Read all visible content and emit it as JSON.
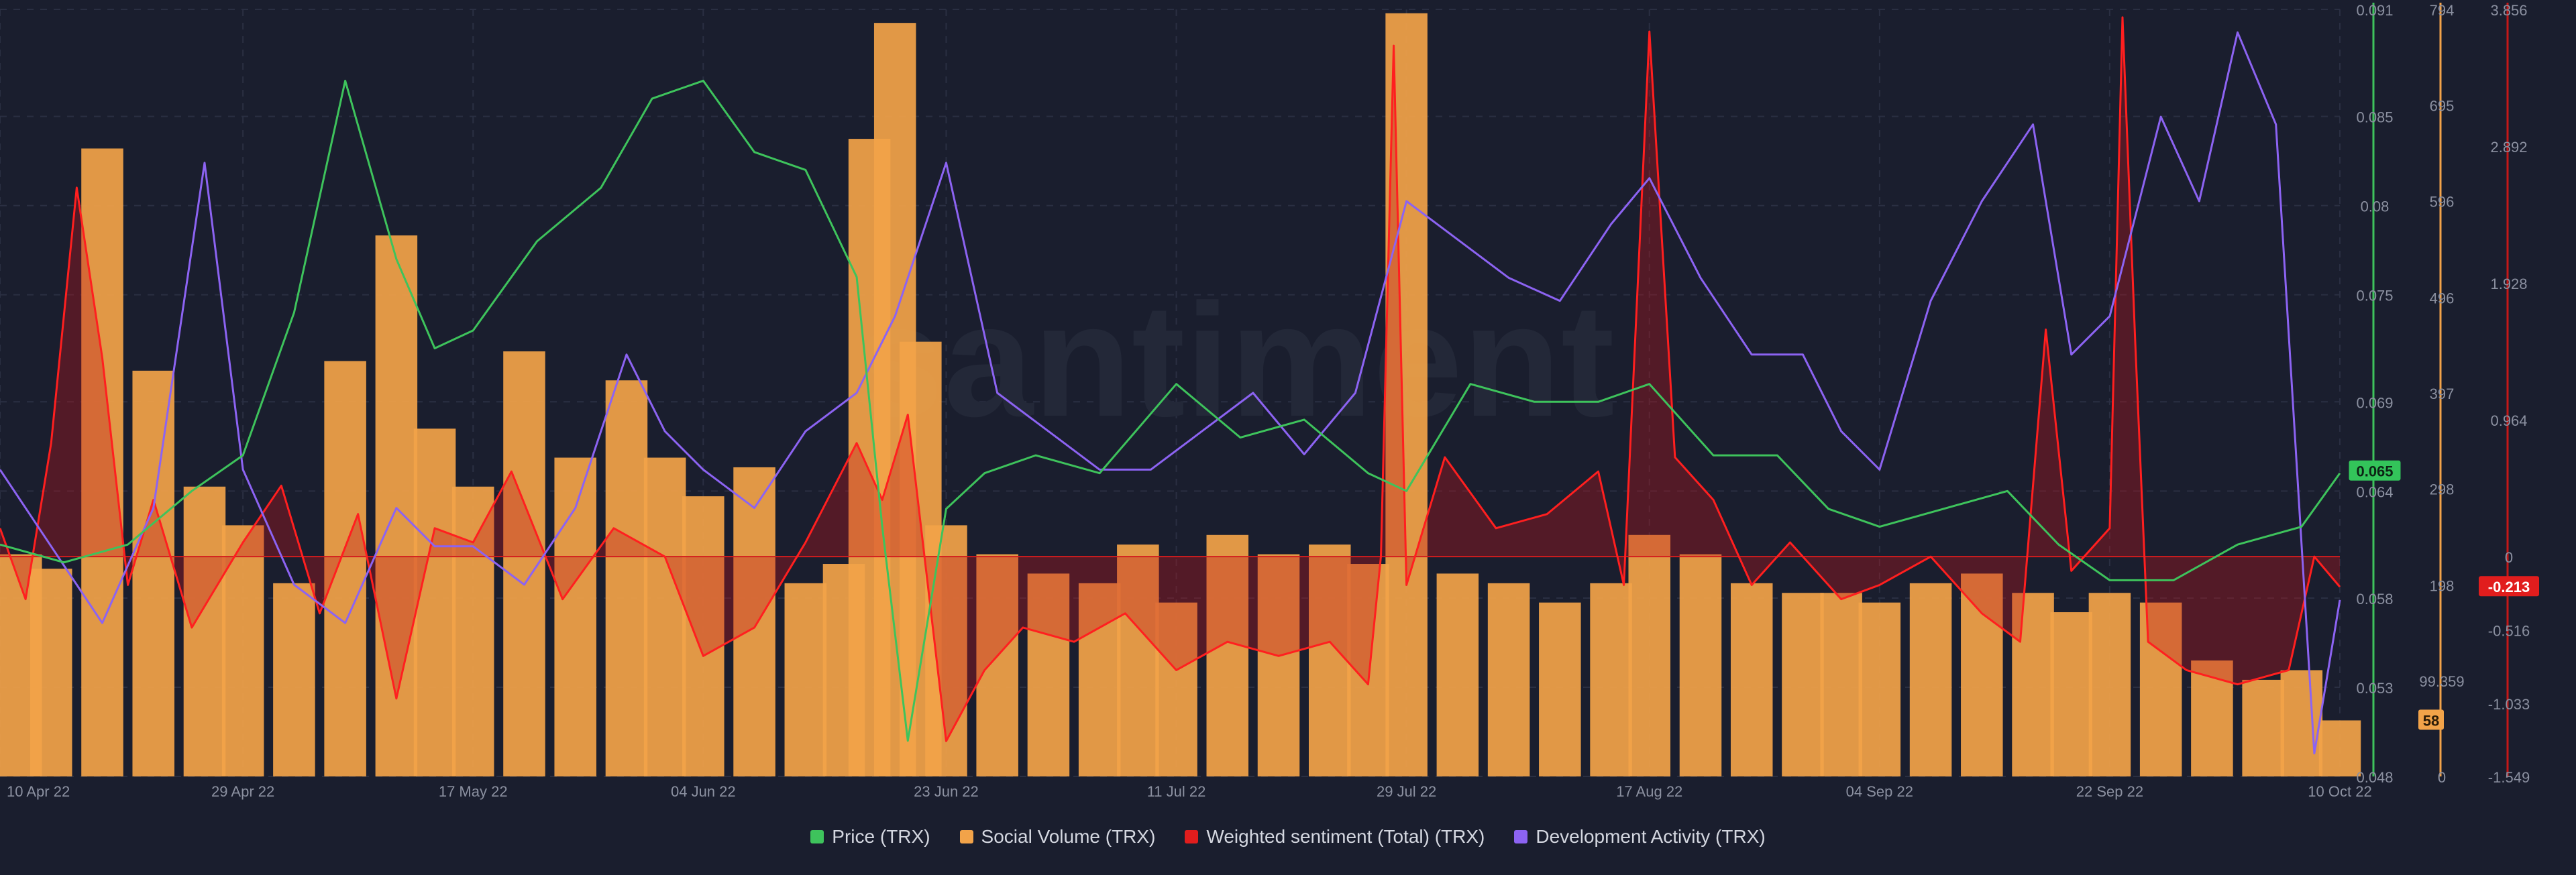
{
  "watermark": "santiment",
  "colors": {
    "background": "#1a1e2e",
    "price": "#3ec35c",
    "social": "#f2a349",
    "sentiment": "#ff1f1f",
    "dev": "#8c63f2",
    "grid": "#2a2f42",
    "axis_text": "#8b90a0"
  },
  "chart_data": {
    "type": "line",
    "grid": true,
    "legend_position": "bottom-center",
    "x_ticks": [
      "10 Apr 22",
      "29 Apr 22",
      "17 May 22",
      "04 Jun 22",
      "23 Jun 22",
      "11 Jul 22",
      "29 Jul 22",
      "17 Aug 22",
      "04 Sep 22",
      "22 Sep 22",
      "10 Oct 22"
    ],
    "x_range": [
      "10 Apr 22",
      "10 Oct 22"
    ],
    "axes": {
      "price": {
        "min": 0.048,
        "max": 0.091,
        "ticks": [
          "0.091",
          "0.085",
          "0.08",
          "0.075",
          "0.069",
          "0.064",
          "0.058",
          "0.053",
          "0.048"
        ]
      },
      "social": {
        "min": 0,
        "max": 794,
        "ticks": [
          "794",
          "695",
          "596",
          "496",
          "397",
          "298",
          "198",
          "99.359",
          "0"
        ]
      },
      "sentiment": {
        "min": -1.549,
        "max": 3.856,
        "ticks": [
          "3.856",
          "2.892",
          "1.928",
          "0.964",
          "0",
          "-0.516",
          "-1.033",
          "-1.549"
        ]
      }
    },
    "current_values": {
      "price": "0.065",
      "social": "58",
      "sentiment": "-0.213"
    },
    "series": [
      {
        "name": "Price (TRX)",
        "axis": "price",
        "style": "line",
        "x": [
          "10 Apr 22",
          "15 Apr 22",
          "20 Apr 22",
          "25 Apr 22",
          "29 Apr 22",
          "03 May 22",
          "07 May 22",
          "11 May 22",
          "14 May 22",
          "17 May 22",
          "22 May 22",
          "27 May 22",
          "31 May 22",
          "04 Jun 22",
          "08 Jun 22",
          "12 Jun 22",
          "16 Jun 22",
          "18 Jun 22",
          "20 Jun 22",
          "23 Jun 22",
          "26 Jun 22",
          "30 Jun 22",
          "05 Jul 22",
          "11 Jul 22",
          "16 Jul 22",
          "21 Jul 22",
          "26 Jul 22",
          "29 Jul 22",
          "03 Aug 22",
          "08 Aug 22",
          "13 Aug 22",
          "17 Aug 22",
          "22 Aug 22",
          "27 Aug 22",
          "31 Aug 22",
          "04 Sep 22",
          "09 Sep 22",
          "14 Sep 22",
          "18 Sep 22",
          "22 Sep 22",
          "27 Sep 22",
          "02 Oct 22",
          "07 Oct 22",
          "10 Oct 22"
        ],
        "values": [
          0.061,
          0.06,
          0.061,
          0.064,
          0.066,
          0.074,
          0.087,
          0.077,
          0.072,
          0.073,
          0.078,
          0.081,
          0.086,
          0.087,
          0.083,
          0.082,
          0.076,
          0.062,
          0.05,
          0.063,
          0.065,
          0.066,
          0.065,
          0.07,
          0.067,
          0.068,
          0.065,
          0.064,
          0.07,
          0.069,
          0.069,
          0.07,
          0.066,
          0.066,
          0.063,
          0.062,
          0.063,
          0.064,
          0.061,
          0.059,
          0.059,
          0.061,
          0.062,
          0.065
        ]
      },
      {
        "name": "Social Volume (TRX)",
        "axis": "social",
        "style": "bars",
        "x": [
          "10 Apr 22",
          "14 Apr 22",
          "18 Apr 22",
          "22 Apr 22",
          "26 Apr 22",
          "29 Apr 22",
          "03 May 22",
          "07 May 22",
          "11 May 22",
          "14 May 22",
          "17 May 22",
          "21 May 22",
          "25 May 22",
          "29 May 22",
          "01 Jun 22",
          "04 Jun 22",
          "08 Jun 22",
          "12 Jun 22",
          "15 Jun 22",
          "17 Jun 22",
          "19 Jun 22",
          "21 Jun 22",
          "23 Jun 22",
          "27 Jun 22",
          "01 Jul 22",
          "05 Jul 22",
          "08 Jul 22",
          "11 Jul 22",
          "15 Jul 22",
          "19 Jul 22",
          "23 Jul 22",
          "26 Jul 22",
          "29 Jul 22",
          "02 Aug 22",
          "06 Aug 22",
          "10 Aug 22",
          "14 Aug 22",
          "17 Aug 22",
          "21 Aug 22",
          "25 Aug 22",
          "29 Aug 22",
          "01 Sep 22",
          "04 Sep 22",
          "08 Sep 22",
          "12 Sep 22",
          "16 Sep 22",
          "19 Sep 22",
          "22 Sep 22",
          "26 Sep 22",
          "30 Sep 22",
          "04 Oct 22",
          "07 Oct 22",
          "10 Oct 22"
        ],
        "values": [
          230,
          215,
          650,
          420,
          300,
          260,
          200,
          430,
          560,
          360,
          300,
          440,
          330,
          410,
          330,
          290,
          320,
          200,
          220,
          660,
          780,
          450,
          260,
          230,
          210,
          200,
          240,
          180,
          250,
          230,
          240,
          220,
          790,
          210,
          200,
          180,
          200,
          250,
          230,
          200,
          190,
          190,
          180,
          200,
          210,
          190,
          170,
          190,
          180,
          120,
          100,
          110,
          58
        ]
      },
      {
        "name": "Weighted sentiment (Total) (TRX)",
        "axis": "sentiment",
        "style": "line-area",
        "x": [
          "10 Apr 22",
          "12 Apr 22",
          "14 Apr 22",
          "16 Apr 22",
          "18 Apr 22",
          "20 Apr 22",
          "22 Apr 22",
          "25 Apr 22",
          "29 Apr 22",
          "02 May 22",
          "05 May 22",
          "08 May 22",
          "11 May 22",
          "14 May 22",
          "17 May 22",
          "20 May 22",
          "24 May 22",
          "28 May 22",
          "01 Jun 22",
          "04 Jun 22",
          "08 Jun 22",
          "12 Jun 22",
          "16 Jun 22",
          "18 Jun 22",
          "20 Jun 22",
          "23 Jun 22",
          "26 Jun 22",
          "29 Jun 22",
          "03 Jul 22",
          "07 Jul 22",
          "11 Jul 22",
          "15 Jul 22",
          "19 Jul 22",
          "23 Jul 22",
          "26 Jul 22",
          "27 Jul 22",
          "28 Jul 22",
          "29 Jul 22",
          "01 Aug 22",
          "05 Aug 22",
          "09 Aug 22",
          "13 Aug 22",
          "15 Aug 22",
          "17 Aug 22",
          "19 Aug 22",
          "22 Aug 22",
          "25 Aug 22",
          "28 Aug 22",
          "01 Sep 22",
          "04 Sep 22",
          "08 Sep 22",
          "12 Sep 22",
          "15 Sep 22",
          "17 Sep 22",
          "19 Sep 22",
          "22 Sep 22",
          "23 Sep 22",
          "24 Sep 22",
          "25 Sep 22",
          "28 Sep 22",
          "02 Oct 22",
          "06 Oct 22",
          "08 Oct 22",
          "10 Oct 22"
        ],
        "values": [
          0.2,
          -0.3,
          0.8,
          2.6,
          1.4,
          -0.2,
          0.4,
          -0.5,
          0.1,
          0.5,
          -0.4,
          0.3,
          -1.0,
          0.2,
          0.1,
          0.6,
          -0.3,
          0.2,
          0.0,
          -0.7,
          -0.5,
          0.1,
          0.8,
          0.4,
          1.0,
          -1.3,
          -0.8,
          -0.5,
          -0.6,
          -0.4,
          -0.8,
          -0.6,
          -0.7,
          -0.6,
          -0.9,
          0.0,
          3.6,
          -0.2,
          0.7,
          0.2,
          0.3,
          0.6,
          -0.2,
          3.7,
          0.7,
          0.4,
          -0.2,
          0.1,
          -0.3,
          -0.2,
          0.0,
          -0.4,
          -0.6,
          1.6,
          -0.1,
          0.2,
          3.8,
          1.5,
          -0.6,
          -0.8,
          -0.9,
          -0.8,
          0.0,
          -0.213
        ]
      },
      {
        "name": "Development Activity (TRX)",
        "axis": "dev",
        "style": "line",
        "x": [
          "10 Apr 22",
          "14 Apr 22",
          "18 Apr 22",
          "22 Apr 22",
          "26 Apr 22",
          "29 Apr 22",
          "03 May 22",
          "07 May 22",
          "11 May 22",
          "14 May 22",
          "17 May 22",
          "21 May 22",
          "25 May 22",
          "29 May 22",
          "01 Jun 22",
          "04 Jun 22",
          "08 Jun 22",
          "12 Jun 22",
          "16 Jun 22",
          "19 Jun 22",
          "23 Jun 22",
          "27 Jun 22",
          "01 Jul 22",
          "05 Jul 22",
          "09 Jul 22",
          "13 Jul 22",
          "17 Jul 22",
          "21 Jul 22",
          "25 Jul 22",
          "29 Jul 22",
          "02 Aug 22",
          "06 Aug 22",
          "10 Aug 22",
          "14 Aug 22",
          "17 Aug 22",
          "21 Aug 22",
          "25 Aug 22",
          "29 Aug 22",
          "01 Sep 22",
          "04 Sep 22",
          "08 Sep 22",
          "12 Sep 22",
          "16 Sep 22",
          "19 Sep 22",
          "22 Sep 22",
          "26 Sep 22",
          "29 Sep 22",
          "02 Oct 22",
          "05 Oct 22",
          "08 Oct 22",
          "10 Oct 22"
        ],
        "values": [
          40,
          30,
          20,
          35,
          80,
          40,
          25,
          20,
          35,
          30,
          30,
          25,
          35,
          55,
          45,
          40,
          35,
          45,
          50,
          60,
          80,
          50,
          45,
          40,
          40,
          45,
          50,
          42,
          50,
          75,
          70,
          65,
          62,
          72,
          78,
          65,
          55,
          55,
          45,
          40,
          62,
          75,
          85,
          55,
          60,
          86,
          75,
          97,
          85,
          3,
          23
        ]
      }
    ]
  },
  "legend": [
    {
      "label": "Price (TRX)",
      "color": "#3ec35c"
    },
    {
      "label": "Social Volume (TRX)",
      "color": "#f2a349"
    },
    {
      "label": "Weighted sentiment (Total) (TRX)",
      "color": "#e11d1d"
    },
    {
      "label": "Development Activity (TRX)",
      "color": "#8c63f2"
    }
  ]
}
